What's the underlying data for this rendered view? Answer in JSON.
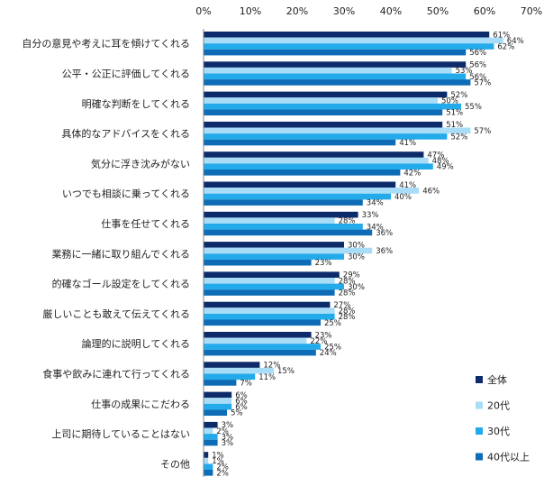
{
  "chart_data": {
    "type": "bar",
    "orientation": "horizontal",
    "value_unit": "%",
    "xlim": [
      0,
      70
    ],
    "x_ticks": [
      "0%",
      "10%",
      "20%",
      "30%",
      "40%",
      "50%",
      "60%",
      "70%"
    ],
    "grid": false,
    "legend_position": "bottom-right",
    "categories": [
      "自分の意見や考えに耳を傾けてくれる",
      "公平・公正に評価してくれる",
      "明確な判断をしてくれる",
      "具体的なアドバイスをくれる",
      "気分に浮き沈みがない",
      "いつでも相談に乗ってくれる",
      "仕事を任せてくれる",
      "業務に一緒に取り組んでくれる",
      "的確なゴール設定をしてくれる",
      "厳しいことも敢えて伝えてくれる",
      "論理的に説明してくれる",
      "食事や飲みに連れて行ってくれる",
      "仕事の成果にこだわる",
      "上司に期待していることはない",
      "その他"
    ],
    "series": [
      {
        "name": "全体",
        "color": "#0d2b6b",
        "values": [
          61,
          56,
          52,
          51,
          47,
          41,
          33,
          30,
          29,
          27,
          23,
          12,
          6,
          3,
          1
        ]
      },
      {
        "name": "20代",
        "color": "#a9ddf7",
        "values": [
          64,
          53,
          50,
          57,
          48,
          46,
          28,
          36,
          28,
          28,
          22,
          15,
          6,
          2,
          1
        ]
      },
      {
        "name": "30代",
        "color": "#22aaea",
        "values": [
          62,
          56,
          55,
          52,
          49,
          40,
          34,
          30,
          30,
          28,
          25,
          11,
          6,
          3,
          2
        ]
      },
      {
        "name": "40代以上",
        "color": "#0d6cb5",
        "values": [
          56,
          57,
          51,
          41,
          42,
          34,
          36,
          23,
          28,
          25,
          24,
          7,
          5,
          3,
          2
        ]
      }
    ]
  }
}
